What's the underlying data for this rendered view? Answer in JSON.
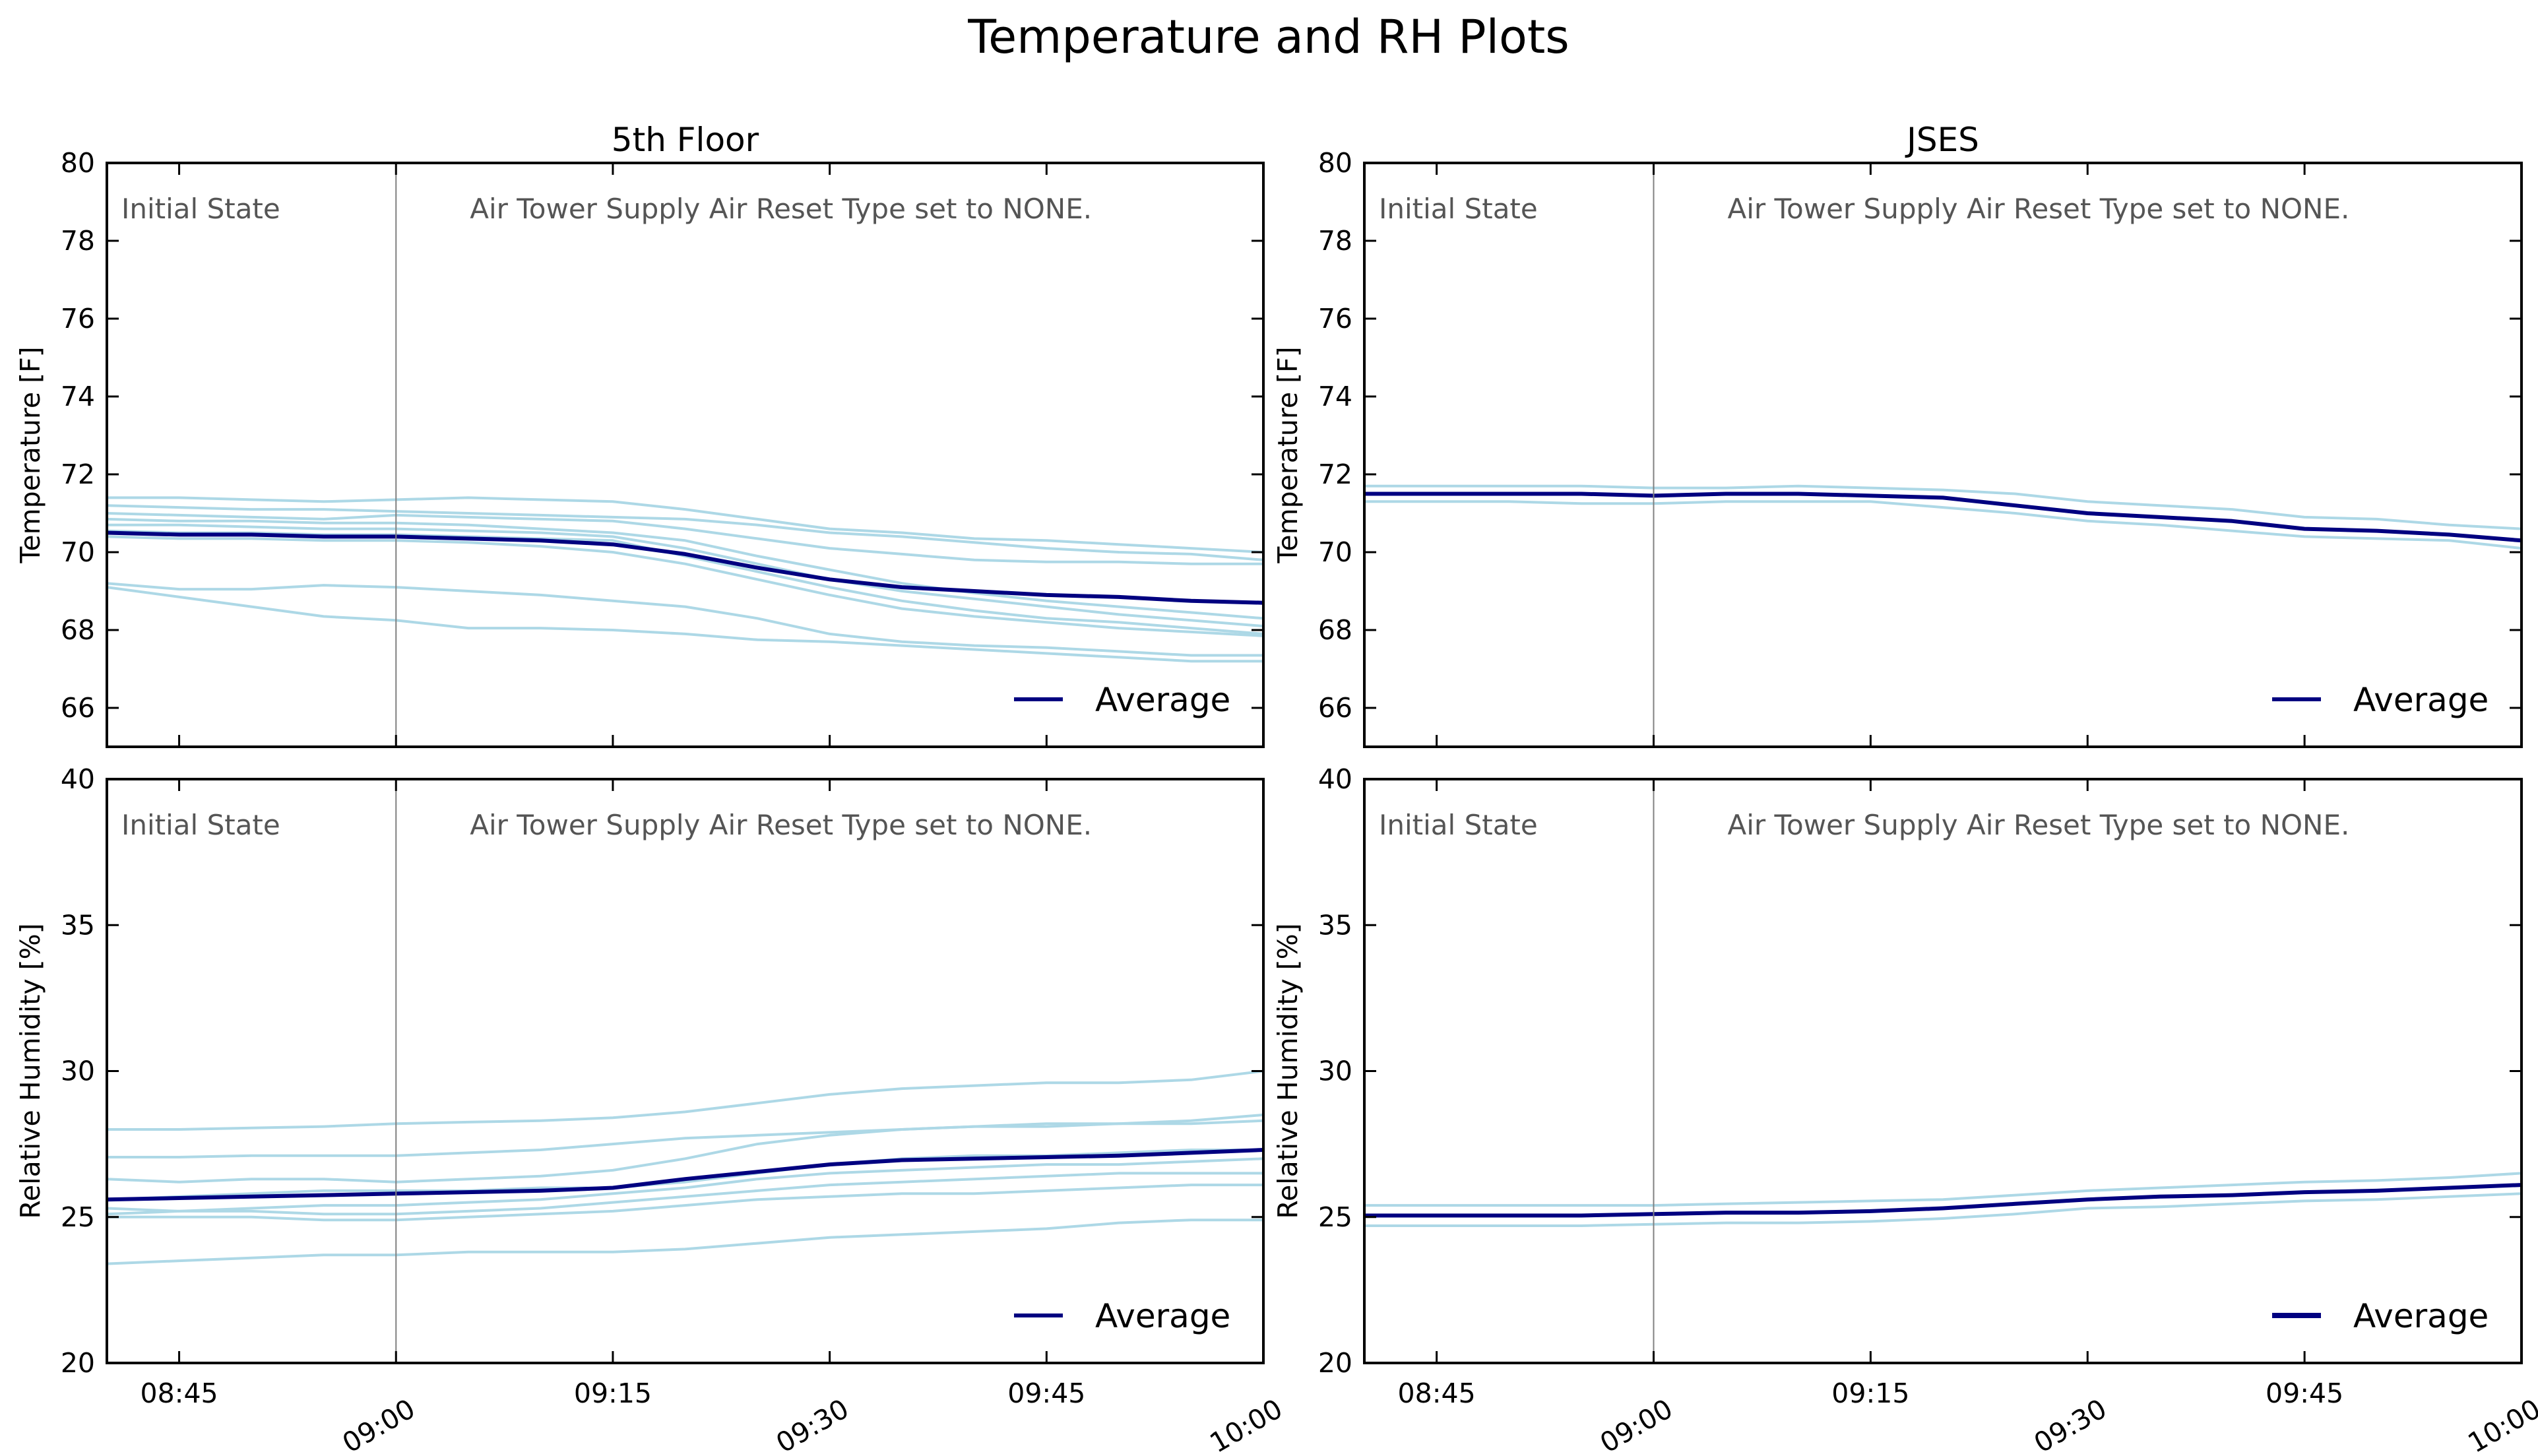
{
  "figure_title": "Temperature and RH Plots",
  "colors": {
    "member": "#add8e6",
    "average": "#000080",
    "event_line": "#808080"
  },
  "chart_data": [
    {
      "type": "line",
      "title": "5th Floor",
      "ylabel": "Temperature [F]",
      "xlim": [
        "08:40",
        "10:00"
      ],
      "ylim": [
        65,
        80
      ],
      "yticks": [
        66,
        68,
        70,
        72,
        74,
        76,
        78,
        80
      ],
      "xticks": [
        "08:45",
        "09:00",
        "09:15",
        "09:30",
        "09:45",
        "10:00"
      ],
      "grid": false,
      "legend": {
        "placement": "lower-right",
        "entries": [
          "Average"
        ]
      },
      "event": {
        "x": "09:00"
      },
      "annotations": [
        "Initial State",
        "Air Tower Supply Air Reset Type set to NONE."
      ],
      "x": [
        "08:40",
        "08:45",
        "08:50",
        "08:55",
        "09:00",
        "09:05",
        "09:10",
        "09:15",
        "09:20",
        "09:25",
        "09:30",
        "09:35",
        "09:40",
        "09:45",
        "09:50",
        "09:55",
        "10:00"
      ],
      "series": [
        {
          "values": [
            71.4,
            71.4,
            71.35,
            71.3,
            71.35,
            71.4,
            71.35,
            71.3,
            71.1,
            70.85,
            70.6,
            70.5,
            70.35,
            70.3,
            70.2,
            70.1,
            70.0
          ]
        },
        {
          "values": [
            71.2,
            71.15,
            71.1,
            71.1,
            71.05,
            71.0,
            70.95,
            70.9,
            70.85,
            70.7,
            70.5,
            70.4,
            70.25,
            70.1,
            70.0,
            69.95,
            69.8
          ]
        },
        {
          "values": [
            71.0,
            70.95,
            70.9,
            70.85,
            70.95,
            70.9,
            70.85,
            70.8,
            70.6,
            70.35,
            70.1,
            69.95,
            69.8,
            69.75,
            69.75,
            69.7,
            69.7
          ]
        },
        {
          "values": [
            70.85,
            70.8,
            70.8,
            70.75,
            70.75,
            70.7,
            70.6,
            70.5,
            70.3,
            69.9,
            69.55,
            69.2,
            68.95,
            68.75,
            68.6,
            68.45,
            68.3
          ]
        },
        {
          "values": [
            70.7,
            70.7,
            70.65,
            70.6,
            70.6,
            70.55,
            70.5,
            70.4,
            70.1,
            69.7,
            69.3,
            69.0,
            68.8,
            68.6,
            68.4,
            68.25,
            68.1
          ]
        },
        {
          "values": [
            70.55,
            70.5,
            70.5,
            70.45,
            70.45,
            70.4,
            70.35,
            70.3,
            69.9,
            69.5,
            69.1,
            68.75,
            68.5,
            68.3,
            68.2,
            68.05,
            67.9
          ]
        },
        {
          "values": [
            70.4,
            70.35,
            70.35,
            70.3,
            70.3,
            70.25,
            70.15,
            70.0,
            69.7,
            69.3,
            68.9,
            68.55,
            68.35,
            68.2,
            68.05,
            67.95,
            67.85
          ]
        },
        {
          "values": [
            69.2,
            69.05,
            69.05,
            69.15,
            69.1,
            69.0,
            68.9,
            68.75,
            68.6,
            68.3,
            67.9,
            67.7,
            67.6,
            67.55,
            67.45,
            67.35,
            67.35
          ]
        },
        {
          "values": [
            69.1,
            68.85,
            68.6,
            68.35,
            68.25,
            68.05,
            68.05,
            68.0,
            67.9,
            67.75,
            67.7,
            67.6,
            67.5,
            67.4,
            67.3,
            67.2,
            67.2
          ]
        },
        {
          "name": "Average",
          "average": true,
          "values": [
            70.5,
            70.45,
            70.45,
            70.4,
            70.4,
            70.35,
            70.3,
            70.2,
            69.95,
            69.6,
            69.3,
            69.1,
            69.0,
            68.9,
            68.85,
            68.75,
            68.7
          ]
        }
      ]
    },
    {
      "type": "line",
      "title": "JSES",
      "ylabel": "Temperature [F]",
      "xlim": [
        "08:40",
        "10:00"
      ],
      "ylim": [
        65,
        80
      ],
      "yticks": [
        66,
        68,
        70,
        72,
        74,
        76,
        78,
        80
      ],
      "xticks": [
        "08:45",
        "09:00",
        "09:15",
        "09:30",
        "09:45",
        "10:00"
      ],
      "grid": false,
      "legend": {
        "placement": "lower-right",
        "entries": [
          "Average"
        ]
      },
      "event": {
        "x": "09:00"
      },
      "annotations": [
        "Initial State",
        "Air Tower Supply Air Reset Type set to NONE."
      ],
      "x": [
        "08:40",
        "08:45",
        "08:50",
        "08:55",
        "09:00",
        "09:05",
        "09:10",
        "09:15",
        "09:20",
        "09:25",
        "09:30",
        "09:35",
        "09:40",
        "09:45",
        "09:50",
        "09:55",
        "10:00"
      ],
      "series": [
        {
          "values": [
            71.7,
            71.7,
            71.7,
            71.7,
            71.65,
            71.65,
            71.7,
            71.65,
            71.6,
            71.5,
            71.3,
            71.2,
            71.1,
            70.9,
            70.85,
            70.7,
            70.6
          ]
        },
        {
          "values": [
            71.3,
            71.3,
            71.3,
            71.25,
            71.25,
            71.3,
            71.3,
            71.3,
            71.15,
            71.0,
            70.8,
            70.7,
            70.55,
            70.4,
            70.35,
            70.3,
            70.1
          ]
        },
        {
          "name": "Average",
          "average": true,
          "values": [
            71.5,
            71.5,
            71.5,
            71.5,
            71.45,
            71.5,
            71.5,
            71.45,
            71.4,
            71.2,
            71.0,
            70.9,
            70.8,
            70.6,
            70.55,
            70.45,
            70.3
          ]
        }
      ]
    },
    {
      "type": "line",
      "title": "",
      "ylabel": "Relative Humidity [%]",
      "xlim": [
        "08:40",
        "10:00"
      ],
      "ylim": [
        20,
        40
      ],
      "yticks": [
        20,
        25,
        30,
        35,
        40
      ],
      "xticks": [
        "08:45",
        "09:00",
        "09:15",
        "09:30",
        "09:45",
        "10:00"
      ],
      "grid": false,
      "legend": {
        "placement": "lower-right",
        "entries": [
          "Average"
        ]
      },
      "event": {
        "x": "09:00"
      },
      "annotations": [
        "Initial State",
        "Air Tower Supply Air Reset Type set to NONE."
      ],
      "x": [
        "08:40",
        "08:45",
        "08:50",
        "08:55",
        "09:00",
        "09:05",
        "09:10",
        "09:15",
        "09:20",
        "09:25",
        "09:30",
        "09:35",
        "09:40",
        "09:45",
        "09:50",
        "09:55",
        "10:00"
      ],
      "series": [
        {
          "values": [
            28.0,
            28.0,
            28.05,
            28.1,
            28.2,
            28.25,
            28.3,
            28.4,
            28.6,
            28.9,
            29.2,
            29.4,
            29.5,
            29.6,
            29.6,
            29.7,
            30.0
          ]
        },
        {
          "values": [
            27.05,
            27.05,
            27.1,
            27.1,
            27.1,
            27.2,
            27.3,
            27.5,
            27.7,
            27.8,
            27.9,
            28.0,
            28.1,
            28.2,
            28.2,
            28.3,
            28.5
          ]
        },
        {
          "values": [
            26.3,
            26.2,
            26.3,
            26.3,
            26.2,
            26.3,
            26.4,
            26.6,
            27.0,
            27.5,
            27.8,
            28.0,
            28.1,
            28.1,
            28.2,
            28.2,
            28.3
          ]
        },
        {
          "values": [
            25.6,
            25.7,
            25.8,
            25.9,
            25.9,
            25.9,
            26.0,
            26.0,
            26.2,
            26.5,
            26.8,
            27.0,
            27.1,
            27.1,
            27.2,
            27.3,
            27.3
          ]
        },
        {
          "values": [
            25.1,
            25.2,
            25.3,
            25.4,
            25.4,
            25.5,
            25.6,
            25.8,
            26.0,
            26.3,
            26.5,
            26.6,
            26.7,
            26.8,
            26.8,
            26.9,
            27.0
          ]
        },
        {
          "values": [
            25.3,
            25.2,
            25.2,
            25.1,
            25.1,
            25.2,
            25.3,
            25.5,
            25.7,
            25.9,
            26.1,
            26.2,
            26.3,
            26.4,
            26.5,
            26.5,
            26.5
          ]
        },
        {
          "values": [
            25.0,
            25.0,
            25.0,
            24.9,
            24.9,
            25.0,
            25.1,
            25.2,
            25.4,
            25.6,
            25.7,
            25.8,
            25.8,
            25.9,
            26.0,
            26.1,
            26.1
          ]
        },
        {
          "values": [
            23.4,
            23.5,
            23.6,
            23.7,
            23.7,
            23.8,
            23.8,
            23.8,
            23.9,
            24.1,
            24.3,
            24.4,
            24.5,
            24.6,
            24.8,
            24.9,
            24.9
          ]
        },
        {
          "name": "Average",
          "average": true,
          "values": [
            25.6,
            25.65,
            25.7,
            25.75,
            25.8,
            25.85,
            25.9,
            26.0,
            26.3,
            26.55,
            26.8,
            26.95,
            27.0,
            27.05,
            27.1,
            27.2,
            27.3
          ]
        }
      ]
    },
    {
      "type": "line",
      "title": "",
      "ylabel": "Relative Humidity [%]",
      "xlim": [
        "08:40",
        "10:00"
      ],
      "ylim": [
        20,
        40
      ],
      "yticks": [
        20,
        25,
        30,
        35,
        40
      ],
      "xticks": [
        "08:45",
        "09:00",
        "09:15",
        "09:30",
        "09:45",
        "10:00"
      ],
      "grid": false,
      "legend": {
        "placement": "lower-right",
        "entries": [
          "Average"
        ]
      },
      "event": {
        "x": "09:00"
      },
      "annotations": [
        "Initial State",
        "Air Tower Supply Air Reset Type set to NONE."
      ],
      "x": [
        "08:40",
        "08:45",
        "08:50",
        "08:55",
        "09:00",
        "09:05",
        "09:10",
        "09:15",
        "09:20",
        "09:25",
        "09:30",
        "09:35",
        "09:40",
        "09:45",
        "09:50",
        "09:55",
        "10:00"
      ],
      "series": [
        {
          "values": [
            25.4,
            25.4,
            25.4,
            25.4,
            25.4,
            25.45,
            25.5,
            25.55,
            25.6,
            25.75,
            25.9,
            26.0,
            26.1,
            26.2,
            26.25,
            26.35,
            26.5
          ]
        },
        {
          "values": [
            24.7,
            24.7,
            24.7,
            24.7,
            24.75,
            24.8,
            24.8,
            24.85,
            24.95,
            25.1,
            25.3,
            25.35,
            25.45,
            25.55,
            25.6,
            25.7,
            25.8
          ]
        },
        {
          "name": "Average",
          "average": true,
          "values": [
            25.05,
            25.05,
            25.05,
            25.05,
            25.1,
            25.15,
            25.15,
            25.2,
            25.3,
            25.45,
            25.6,
            25.7,
            25.75,
            25.85,
            25.9,
            26.0,
            26.1
          ]
        }
      ]
    }
  ]
}
